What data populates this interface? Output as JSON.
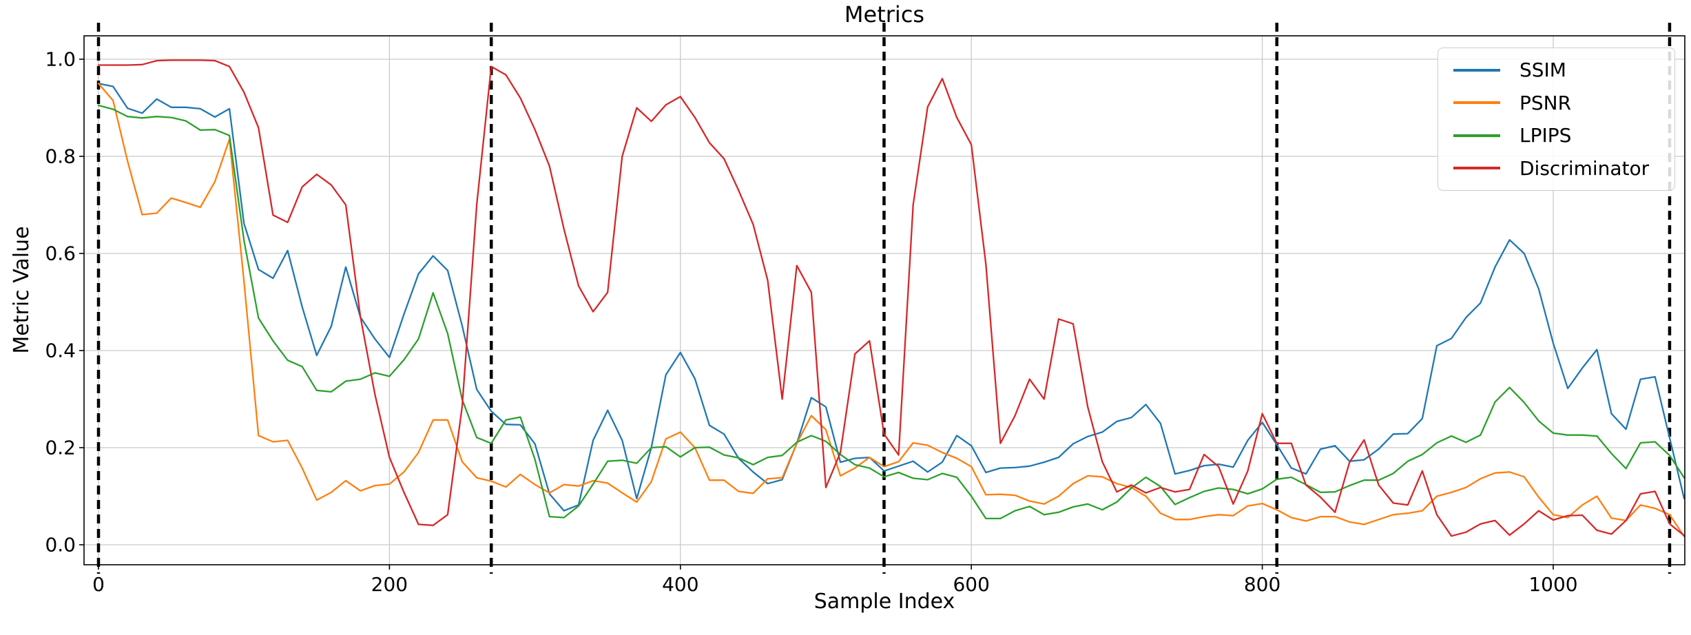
{
  "chart_data": {
    "type": "line",
    "title": "Metrics",
    "xlabel": "Sample Index",
    "ylabel": "Metric Value",
    "xlim": [
      -10,
      1090
    ],
    "ylim": [
      -0.041,
      1.048
    ],
    "grid": true,
    "legend_position": "upper right",
    "x_ticks": [
      {
        "value": 0,
        "label": "0"
      },
      {
        "value": 200,
        "label": "200"
      },
      {
        "value": 400,
        "label": "400"
      },
      {
        "value": 600,
        "label": "600"
      },
      {
        "value": 800,
        "label": "800"
      },
      {
        "value": 1000,
        "label": "1000"
      }
    ],
    "y_ticks": [
      {
        "value": 0.0,
        "label": "0.0"
      },
      {
        "value": 0.2,
        "label": "0.2"
      },
      {
        "value": 0.4,
        "label": "0.4"
      },
      {
        "value": 0.6,
        "label": "0.6"
      },
      {
        "value": 0.8,
        "label": "0.8"
      },
      {
        "value": 1.0,
        "label": "1.0"
      }
    ],
    "vlines": {
      "style": "dashed",
      "color": "#000000",
      "x_values": [
        0,
        270,
        540,
        810,
        1080
      ]
    },
    "x": [
      0,
      10,
      20,
      30,
      40,
      50,
      60,
      70,
      80,
      90,
      100,
      110,
      120,
      130,
      140,
      150,
      160,
      170,
      180,
      190,
      200,
      210,
      220,
      230,
      240,
      250,
      260,
      270,
      280,
      290,
      300,
      310,
      320,
      330,
      340,
      350,
      360,
      370,
      380,
      390,
      400,
      410,
      420,
      430,
      440,
      450,
      460,
      470,
      480,
      490,
      500,
      510,
      520,
      530,
      540,
      550,
      560,
      570,
      580,
      590,
      600,
      610,
      620,
      630,
      640,
      650,
      660,
      670,
      680,
      690,
      700,
      710,
      720,
      730,
      740,
      750,
      760,
      770,
      780,
      790,
      800,
      810,
      820,
      830,
      840,
      850,
      860,
      870,
      880,
      890,
      900,
      910,
      920,
      930,
      940,
      950,
      960,
      970,
      980,
      990,
      1000,
      1010,
      1020,
      1030,
      1040,
      1050,
      1060,
      1070,
      1080,
      1090
    ],
    "series": [
      {
        "name": "SSIM",
        "color": "#1f77b4",
        "values": [
          0.95,
          0.944,
          0.899,
          0.889,
          0.918,
          0.901,
          0.901,
          0.898,
          0.881,
          0.898,
          0.662,
          0.567,
          0.549,
          0.606,
          0.49,
          0.39,
          0.45,
          0.572,
          0.469,
          0.424,
          0.386,
          0.475,
          0.558,
          0.595,
          0.565,
          0.451,
          0.32,
          0.275,
          0.248,
          0.247,
          0.208,
          0.105,
          0.07,
          0.082,
          0.215,
          0.277,
          0.215,
          0.095,
          0.2,
          0.35,
          0.396,
          0.342,
          0.246,
          0.228,
          0.178,
          0.15,
          0.126,
          0.134,
          0.209,
          0.303,
          0.284,
          0.17,
          0.178,
          0.18,
          0.152,
          0.162,
          0.172,
          0.15,
          0.17,
          0.225,
          0.204,
          0.149,
          0.158,
          0.159,
          0.162,
          0.17,
          0.18,
          0.208,
          0.223,
          0.232,
          0.254,
          0.262,
          0.289,
          0.25,
          0.146,
          0.153,
          0.163,
          0.166,
          0.16,
          0.215,
          0.252,
          0.206,
          0.158,
          0.146,
          0.197,
          0.204,
          0.172,
          0.175,
          0.197,
          0.228,
          0.229,
          0.26,
          0.41,
          0.425,
          0.468,
          0.498,
          0.572,
          0.628,
          0.6,
          0.527,
          0.415,
          0.322,
          0.364,
          0.402,
          0.27,
          0.238,
          0.341,
          0.346,
          0.22,
          0.095
        ]
      },
      {
        "name": "PSNR",
        "color": "#ff7f0e",
        "values": [
          0.95,
          0.915,
          0.79,
          0.68,
          0.683,
          0.714,
          0.705,
          0.695,
          0.748,
          0.835,
          0.543,
          0.225,
          0.212,
          0.215,
          0.158,
          0.092,
          0.108,
          0.132,
          0.111,
          0.122,
          0.125,
          0.15,
          0.19,
          0.257,
          0.257,
          0.171,
          0.138,
          0.131,
          0.119,
          0.145,
          0.124,
          0.107,
          0.124,
          0.121,
          0.132,
          0.127,
          0.107,
          0.088,
          0.13,
          0.218,
          0.232,
          0.2,
          0.133,
          0.133,
          0.11,
          0.106,
          0.136,
          0.138,
          0.209,
          0.266,
          0.237,
          0.142,
          0.158,
          0.18,
          0.161,
          0.171,
          0.21,
          0.205,
          0.19,
          0.178,
          0.161,
          0.103,
          0.104,
          0.102,
          0.09,
          0.084,
          0.1,
          0.126,
          0.142,
          0.14,
          0.126,
          0.118,
          0.1,
          0.065,
          0.052,
          0.052,
          0.058,
          0.062,
          0.06,
          0.08,
          0.085,
          0.072,
          0.056,
          0.049,
          0.058,
          0.058,
          0.047,
          0.042,
          0.052,
          0.062,
          0.065,
          0.07,
          0.1,
          0.108,
          0.118,
          0.136,
          0.148,
          0.15,
          0.14,
          0.098,
          0.062,
          0.056,
          0.082,
          0.1,
          0.055,
          0.05,
          0.082,
          0.075,
          0.062,
          0.017
        ]
      },
      {
        "name": "LPIPS",
        "color": "#2ca02c",
        "values": [
          0.905,
          0.897,
          0.882,
          0.879,
          0.882,
          0.88,
          0.873,
          0.854,
          0.855,
          0.843,
          0.627,
          0.467,
          0.42,
          0.38,
          0.367,
          0.318,
          0.315,
          0.337,
          0.341,
          0.354,
          0.347,
          0.381,
          0.424,
          0.519,
          0.435,
          0.299,
          0.221,
          0.209,
          0.257,
          0.263,
          0.176,
          0.058,
          0.056,
          0.08,
          0.125,
          0.172,
          0.174,
          0.168,
          0.2,
          0.202,
          0.181,
          0.2,
          0.201,
          0.185,
          0.179,
          0.165,
          0.18,
          0.184,
          0.211,
          0.225,
          0.213,
          0.186,
          0.165,
          0.158,
          0.14,
          0.149,
          0.137,
          0.134,
          0.147,
          0.139,
          0.1,
          0.054,
          0.054,
          0.07,
          0.079,
          0.062,
          0.067,
          0.078,
          0.084,
          0.072,
          0.088,
          0.117,
          0.139,
          0.12,
          0.083,
          0.097,
          0.11,
          0.117,
          0.114,
          0.105,
          0.115,
          0.135,
          0.139,
          0.124,
          0.108,
          0.109,
          0.122,
          0.133,
          0.133,
          0.147,
          0.172,
          0.186,
          0.21,
          0.224,
          0.211,
          0.226,
          0.294,
          0.324,
          0.293,
          0.255,
          0.23,
          0.226,
          0.226,
          0.224,
          0.188,
          0.157,
          0.21,
          0.212,
          0.184,
          0.138
        ]
      },
      {
        "name": "Discriminator",
        "color": "#d62728",
        "values": [
          0.988,
          0.988,
          0.988,
          0.989,
          0.997,
          0.998,
          0.998,
          0.998,
          0.997,
          0.985,
          0.932,
          0.859,
          0.679,
          0.664,
          0.737,
          0.763,
          0.741,
          0.7,
          0.47,
          0.31,
          0.18,
          0.108,
          0.042,
          0.04,
          0.062,
          0.285,
          0.7,
          0.985,
          0.968,
          0.92,
          0.855,
          0.78,
          0.65,
          0.533,
          0.48,
          0.52,
          0.8,
          0.9,
          0.872,
          0.906,
          0.923,
          0.88,
          0.828,
          0.795,
          0.73,
          0.66,
          0.545,
          0.3,
          0.575,
          0.52,
          0.118,
          0.19,
          0.393,
          0.42,
          0.228,
          0.185,
          0.7,
          0.902,
          0.96,
          0.88,
          0.824,
          0.578,
          0.209,
          0.266,
          0.341,
          0.3,
          0.465,
          0.455,
          0.284,
          0.171,
          0.109,
          0.123,
          0.107,
          0.118,
          0.109,
          0.114,
          0.186,
          0.161,
          0.084,
          0.152,
          0.27,
          0.209,
          0.209,
          0.123,
          0.098,
          0.067,
          0.17,
          0.216,
          0.123,
          0.086,
          0.082,
          0.152,
          0.062,
          0.018,
          0.026,
          0.043,
          0.05,
          0.02,
          0.043,
          0.07,
          0.051,
          0.06,
          0.061,
          0.03,
          0.022,
          0.05,
          0.105,
          0.11,
          0.043,
          0.019
        ]
      }
    ]
  }
}
